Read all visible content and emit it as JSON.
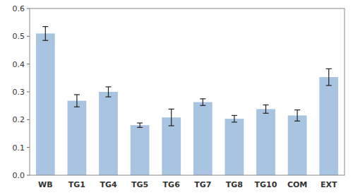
{
  "chart_data": {
    "type": "bar",
    "categories": [
      "WB",
      "TG1",
      "TG4",
      "TG5",
      "TG6",
      "TG7",
      "TG8",
      "TG10",
      "COM",
      "EXT"
    ],
    "values": [
      0.51,
      0.268,
      0.3,
      0.18,
      0.208,
      0.263,
      0.203,
      0.238,
      0.215,
      0.353
    ],
    "errors": [
      0.025,
      0.022,
      0.018,
      0.008,
      0.03,
      0.012,
      0.012,
      0.015,
      0.02,
      0.03
    ],
    "color": "#a8c4e0",
    "ylim": [
      0,
      0.6
    ],
    "yticks": [
      {
        "value": 0,
        "label": "0.0"
      },
      0.1,
      0.2,
      0.3,
      0.4,
      0.5,
      0.6
    ],
    "grid": false
  }
}
